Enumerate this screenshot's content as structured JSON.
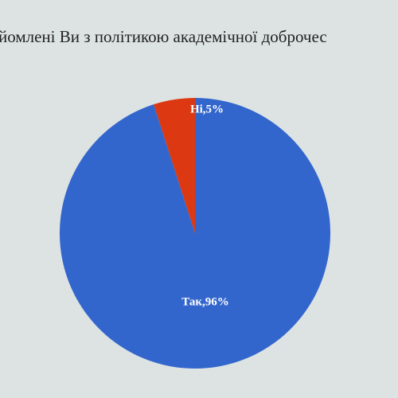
{
  "chart_data": {
    "type": "pie",
    "title": "йомлені Ви  з політикою академічної доброчес",
    "values": [
      5,
      96
    ],
    "value_labels": [
      "Ні,5%",
      "Так,96%"
    ],
    "colors": [
      "#dc3912",
      "#3366cc"
    ]
  }
}
